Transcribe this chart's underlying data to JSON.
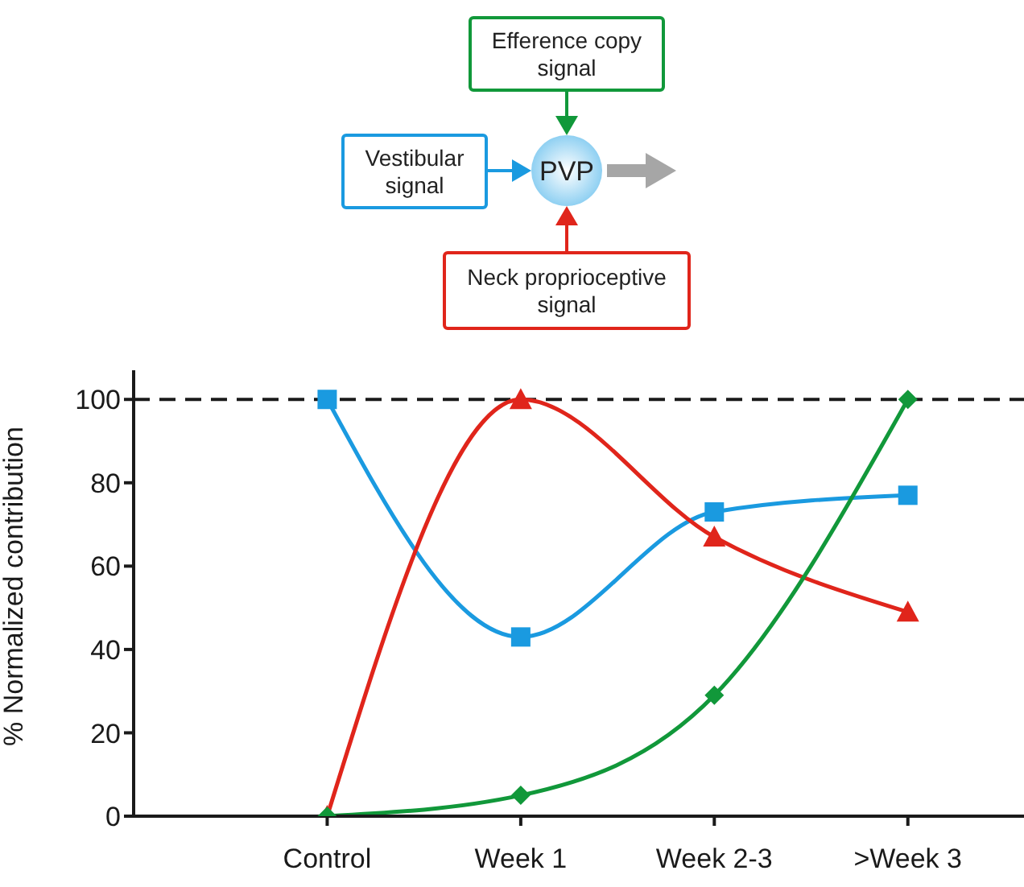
{
  "chart_data": {
    "type": "line",
    "ylabel": "% Normalized contribution",
    "categories": [
      null,
      "Control",
      "Week 1",
      "Week 2-3",
      ">Week 3"
    ],
    "series": [
      {
        "color": "#1a9ae0",
        "marker": "square",
        "values": [
          null,
          100,
          43,
          73,
          77
        ]
      },
      {
        "color": "#e0251b",
        "marker": "triangle",
        "values": [
          null,
          0,
          100,
          67,
          49
        ]
      },
      {
        "color": "#11983a",
        "marker": "diamond",
        "values": [
          null,
          0,
          5,
          29,
          100
        ]
      }
    ],
    "ylim": [
      0,
      107
    ],
    "yticks": [
      0,
      20,
      40,
      60,
      80,
      100
    ],
    "ref_lines": [
      {
        "axis": "y",
        "value": 100,
        "color": "#1a1a1a",
        "line_style": "dashed"
      }
    ],
    "annotations": [
      "Efference copy signal",
      "Vestibular signal",
      "Neck proprioceptive signal",
      "PVP"
    ],
    "grid": false,
    "legend": false
  }
}
